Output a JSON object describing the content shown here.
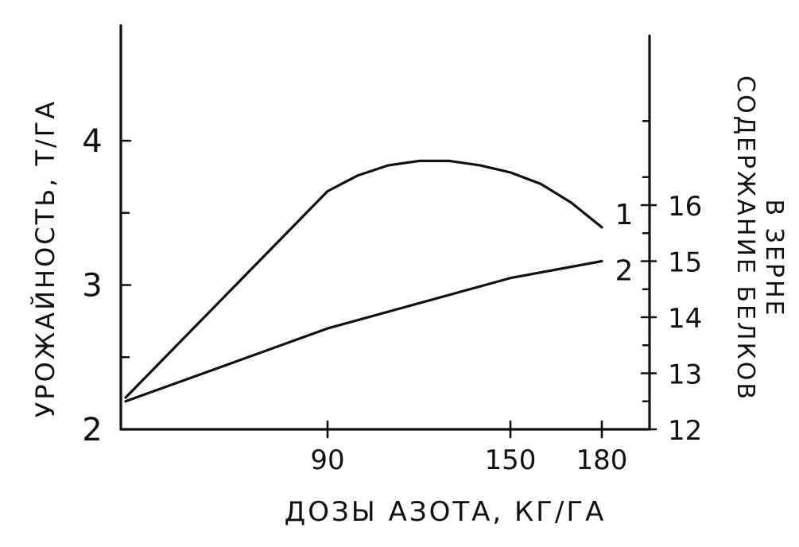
{
  "chart_data": {
    "type": "line",
    "xlabel": "ДОЗЫ АЗОТА, КГ/ГА",
    "ylabel": "УРОЖАЙНОСТЬ, Т/ГА",
    "y2label_line1": "СОДЕРЖАНИЕ БЕЛКОВ",
    "y2label_line2": "В ЗЕРНЕ",
    "xlim": [
      0,
      190
    ],
    "ylim": [
      2,
      4.8
    ],
    "y2lim": [
      12,
      19
    ],
    "x_ticks": [
      90,
      150,
      180
    ],
    "y_ticks": [
      2,
      3,
      4
    ],
    "y2_ticks": [
      12,
      13,
      14,
      15,
      16
    ],
    "grid": false,
    "series": [
      {
        "name": "1",
        "axis": "left",
        "x": [
          0,
          90,
          100,
          110,
          120,
          130,
          140,
          150,
          160,
          170,
          180
        ],
        "values": [
          2.22,
          3.65,
          3.76,
          3.83,
          3.86,
          3.86,
          3.83,
          3.78,
          3.7,
          3.57,
          3.4
        ]
      },
      {
        "name": "2",
        "axis": "right",
        "x": [
          0,
          90,
          150,
          180
        ],
        "values": [
          12.5,
          13.8,
          14.7,
          15.0
        ]
      }
    ]
  }
}
